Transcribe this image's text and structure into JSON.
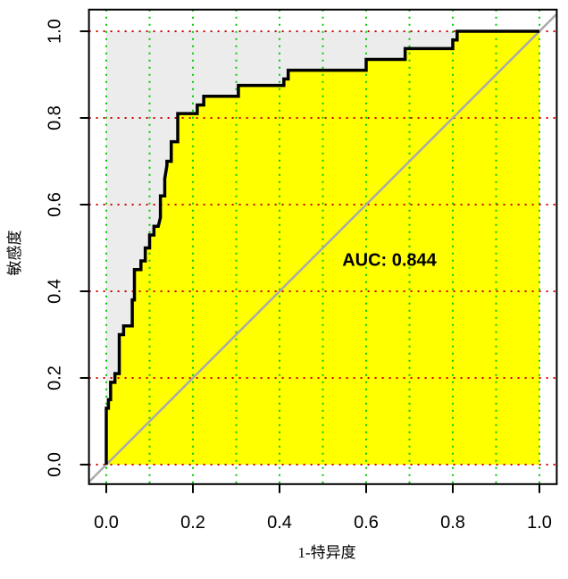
{
  "chart_data": {
    "type": "roc",
    "x_label": "1-特异度",
    "y_label": "敏感度",
    "annotation": "AUC: 0.844",
    "x": [
      0,
      0,
      0.005,
      0.005,
      0.01,
      0.01,
      0.02,
      0.02,
      0.03,
      0.03,
      0.04,
      0.04,
      0.06,
      0.06,
      0.065,
      0.065,
      0.08,
      0.08,
      0.09,
      0.09,
      0.1,
      0.1,
      0.11,
      0.11,
      0.12,
      0.125,
      0.125,
      0.135,
      0.135,
      0.14,
      0.14,
      0.15,
      0.15,
      0.165,
      0.165,
      0.21,
      0.21,
      0.225,
      0.225,
      0.305,
      0.305,
      0.41,
      0.41,
      0.42,
      0.42,
      0.43,
      0.6,
      0.6,
      0.69,
      0.69,
      0.8,
      0.8,
      0.81,
      0.81,
      1
    ],
    "values": [
      0,
      0.13,
      0.13,
      0.15,
      0.15,
      0.19,
      0.19,
      0.21,
      0.21,
      0.3,
      0.3,
      0.32,
      0.32,
      0.38,
      0.38,
      0.45,
      0.45,
      0.47,
      0.47,
      0.5,
      0.5,
      0.53,
      0.53,
      0.55,
      0.55,
      0.57,
      0.62,
      0.62,
      0.66,
      0.69,
      0.7,
      0.7,
      0.745,
      0.745,
      0.81,
      0.81,
      0.83,
      0.83,
      0.85,
      0.85,
      0.875,
      0.875,
      0.89,
      0.89,
      0.91,
      0.91,
      0.91,
      0.935,
      0.935,
      0.96,
      0.96,
      0.98,
      0.98,
      1,
      1
    ],
    "color": "#000000",
    "fill_under": "#ffff00",
    "fill_over": "#ececec",
    "diagonal_color": "#aaaaaa",
    "xlim": [
      -0.04,
      1.04
    ],
    "ylim": [
      -0.045,
      1.05
    ],
    "xticks": [
      {
        "value": 0,
        "label": "0.0"
      },
      0.2,
      0.4,
      0.6,
      0.8,
      {
        "value": 1,
        "label": "1.0"
      }
    ],
    "yticks": [
      {
        "value": 0,
        "label": "0.0"
      },
      0.2,
      0.4,
      0.6,
      0.8,
      {
        "value": 1,
        "label": "1.0"
      }
    ],
    "xgrid": [
      0,
      0.1,
      0.2,
      0.3,
      0.4,
      0.5,
      0.6,
      0.7,
      0.8,
      0.9,
      1
    ],
    "xgrid_color": "#00cc00",
    "ygrid_color": "#cc0000"
  }
}
